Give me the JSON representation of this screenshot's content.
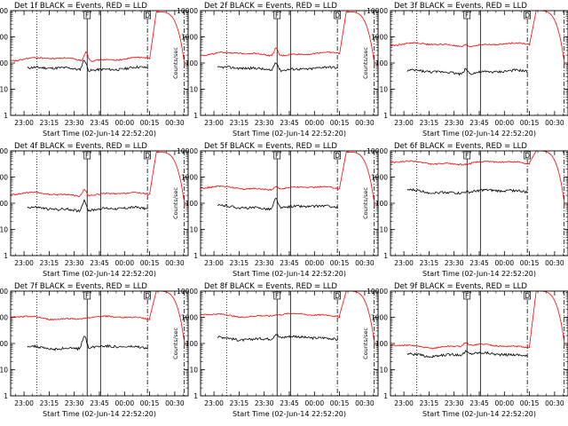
{
  "figure": {
    "background": "#ffffff",
    "colors": {
      "events": "#000000",
      "lld": "#ff0000",
      "axis": "#000000"
    }
  },
  "chart_data": [
    {
      "type": "line",
      "title": "Det 1f BLACK = Events, RED = LLD",
      "xlabel": "Start Time (02-Jun-14 22:52:20)",
      "ylabel": "Counts/sec",
      "x_ticks": [
        "23:00",
        "23:15",
        "23:30",
        "23:45",
        "00:00",
        "00:15",
        "00:30"
      ],
      "y_ticks": [
        "1",
        "10",
        "100",
        "1000",
        "10000"
      ],
      "y_scale": "log",
      "ylim": [
        1,
        10000
      ],
      "vlines": [
        {
          "style": "dotted",
          "t": 7.7
        },
        {
          "style": "solid",
          "t": 37.7
        },
        {
          "style": "solid",
          "t": 45.7
        },
        {
          "style": "dashdot",
          "t": 73.7
        },
        {
          "style": "dashdot",
          "t": 95.7
        }
      ],
      "markers": [
        {
          "label": "F",
          "t": 37.7
        },
        {
          "label": "D",
          "t": 73.7
        }
      ],
      "series": [
        {
          "color": "events",
          "level": 60,
          "t_start": 2,
          "t_end": 74,
          "bump_t": 36,
          "bump_factor": 2.5
        },
        {
          "color": "lld",
          "level": 140,
          "t_start": -8,
          "t_end": 75,
          "bump_t": 37,
          "bump_factor": 2.2,
          "rise_to": 9000
        }
      ]
    },
    {
      "type": "line",
      "title": "Det 2f BLACK = Events, RED = LLD",
      "xlabel": "Start Time (02-Jun-14 22:52:20)",
      "ylabel": "Counts/sec",
      "x_ticks": [
        "23:00",
        "23:15",
        "23:30",
        "23:45",
        "00:00",
        "00:15",
        "00:30"
      ],
      "y_ticks": [
        "1",
        "10",
        "100",
        "1000",
        "10000"
      ],
      "y_scale": "log",
      "ylim": [
        1,
        10000
      ],
      "vlines": [
        {
          "style": "dotted",
          "t": 7.7
        },
        {
          "style": "solid",
          "t": 37.7
        },
        {
          "style": "solid",
          "t": 45.7
        },
        {
          "style": "dashdot",
          "t": 73.7
        },
        {
          "style": "dashdot",
          "t": 95.7
        }
      ],
      "markers": [
        {
          "label": "F",
          "t": 37.7
        },
        {
          "label": "D",
          "t": 73.7
        }
      ],
      "series": [
        {
          "color": "events",
          "level": 60,
          "t_start": 2,
          "t_end": 74,
          "bump_t": 37,
          "bump_factor": 2.2
        },
        {
          "color": "lld",
          "level": 220,
          "t_start": -8,
          "t_end": 75,
          "bump_t": 37,
          "bump_factor": 2.0,
          "rise_to": 9000
        }
      ]
    },
    {
      "type": "line",
      "title": "Det 3f BLACK = Events, RED = LLD",
      "xlabel": "Start Time (02-Jun-14 22:52:20)",
      "ylabel": "Counts/sec",
      "x_ticks": [
        "23:00",
        "23:15",
        "23:30",
        "23:45",
        "00:00",
        "00:15",
        "00:30"
      ],
      "y_ticks": [
        "1",
        "10",
        "100",
        "1000",
        "10000"
      ],
      "y_scale": "log",
      "ylim": [
        1,
        10000
      ],
      "vlines": [
        {
          "style": "dotted",
          "t": 7.7
        },
        {
          "style": "solid",
          "t": 37.7
        },
        {
          "style": "solid",
          "t": 45.7
        },
        {
          "style": "dashdot",
          "t": 73.7
        },
        {
          "style": "dashdot",
          "t": 95.7
        }
      ],
      "markers": [
        {
          "label": "F",
          "t": 37.7
        },
        {
          "label": "D",
          "t": 73.7
        }
      ],
      "series": [
        {
          "color": "events",
          "level": 45,
          "t_start": 2,
          "t_end": 74,
          "bump_t": 37,
          "bump_factor": 1.6
        },
        {
          "color": "lld",
          "level": 500,
          "t_start": -8,
          "t_end": 75,
          "bump_t": 37,
          "bump_factor": 1.2,
          "rise_to": 10000
        }
      ]
    },
    {
      "type": "line",
      "title": "Det 4f BLACK = Events, RED = LLD",
      "xlabel": "Start Time (02-Jun-14 22:52:20)",
      "ylabel": "Counts/sec",
      "x_ticks": [
        "23:00",
        "23:15",
        "23:30",
        "23:45",
        "00:00",
        "00:15",
        "00:30"
      ],
      "y_ticks": [
        "1",
        "10",
        "100",
        "1000",
        "10000"
      ],
      "y_scale": "log",
      "ylim": [
        1,
        10000
      ],
      "vlines": [
        {
          "style": "dotted",
          "t": 7.7
        },
        {
          "style": "solid",
          "t": 37.7
        },
        {
          "style": "solid",
          "t": 45.7
        },
        {
          "style": "dashdot",
          "t": 73.7
        },
        {
          "style": "dashdot",
          "t": 95.7
        }
      ],
      "markers": [
        {
          "label": "F",
          "t": 37.7
        },
        {
          "label": "D",
          "t": 73.7
        }
      ],
      "series": [
        {
          "color": "events",
          "level": 60,
          "t_start": 2,
          "t_end": 74,
          "bump_t": 36,
          "bump_factor": 2.5
        },
        {
          "color": "lld",
          "level": 220,
          "t_start": -8,
          "t_end": 75,
          "bump_t": 36,
          "bump_factor": 1.8,
          "rise_to": 9000
        }
      ]
    },
    {
      "type": "line",
      "title": "Det 5f BLACK = Events, RED = LLD",
      "xlabel": "Start Time (02-Jun-14 22:52:20)",
      "ylabel": "Counts/sec",
      "x_ticks": [
        "23:00",
        "23:15",
        "23:30",
        "23:45",
        "00:00",
        "00:15",
        "00:30"
      ],
      "y_ticks": [
        "1",
        "10",
        "100",
        "1000",
        "10000"
      ],
      "y_scale": "log",
      "ylim": [
        1,
        10000
      ],
      "vlines": [
        {
          "style": "dotted",
          "t": 7.7
        },
        {
          "style": "solid",
          "t": 37.7
        },
        {
          "style": "solid",
          "t": 45.7
        },
        {
          "style": "dashdot",
          "t": 73.7
        },
        {
          "style": "dashdot",
          "t": 95.7
        }
      ],
      "markers": [
        {
          "label": "F",
          "t": 37.7
        },
        {
          "label": "D",
          "t": 73.7
        }
      ],
      "series": [
        {
          "color": "events",
          "level": 70,
          "t_start": 2,
          "t_end": 74,
          "bump_t": 37,
          "bump_factor": 2.5
        },
        {
          "color": "lld",
          "level": 380,
          "t_start": -8,
          "t_end": 75,
          "bump_t": 37,
          "bump_factor": 1.4,
          "rise_to": 9000
        }
      ]
    },
    {
      "type": "line",
      "title": "Det 6f BLACK = Events, RED = LLD",
      "xlabel": "Start Time (02-Jun-14 22:52:20)",
      "ylabel": "Counts/sec",
      "x_ticks": [
        "23:00",
        "23:15",
        "23:30",
        "23:45",
        "00:00",
        "00:15",
        "00:30"
      ],
      "y_ticks": [
        "1",
        "10",
        "100",
        "1000",
        "10000"
      ],
      "y_scale": "log",
      "ylim": [
        1,
        10000
      ],
      "vlines": [
        {
          "style": "dotted",
          "t": 7.7
        },
        {
          "style": "solid",
          "t": 37.7
        },
        {
          "style": "solid",
          "t": 45.7
        },
        {
          "style": "dashdot",
          "t": 73.7
        },
        {
          "style": "dashdot",
          "t": 95.7
        }
      ],
      "markers": [
        {
          "label": "F",
          "t": 37.7
        },
        {
          "label": "D",
          "t": 73.7
        }
      ],
      "series": [
        {
          "color": "events",
          "level": 280,
          "t_start": 2,
          "t_end": 74,
          "bump_t": 37,
          "bump_factor": 1.1
        },
        {
          "color": "lld",
          "level": 3500,
          "t_start": -8,
          "t_end": 75,
          "bump_t": 37,
          "bump_factor": 1.0,
          "rise_to": 10000
        }
      ]
    },
    {
      "type": "line",
      "title": "Det 7f BLACK = Events, RED = LLD",
      "xlabel": "Start Time (02-Jun-14 22:52:20)",
      "ylabel": "Counts/sec",
      "x_ticks": [
        "23:00",
        "23:15",
        "23:30",
        "23:45",
        "00:00",
        "00:15",
        "00:30"
      ],
      "y_ticks": [
        "1",
        "10",
        "100",
        "1000",
        "10000"
      ],
      "y_scale": "log",
      "ylim": [
        1,
        10000
      ],
      "vlines": [
        {
          "style": "dotted",
          "t": 7.7
        },
        {
          "style": "solid",
          "t": 37.7
        },
        {
          "style": "solid",
          "t": 45.7
        },
        {
          "style": "dashdot",
          "t": 73.7
        },
        {
          "style": "dashdot",
          "t": 95.7
        }
      ],
      "markers": [
        {
          "label": "F",
          "t": 37.7
        },
        {
          "label": "D",
          "t": 73.7
        }
      ],
      "series": [
        {
          "color": "events",
          "level": 70,
          "t_start": 2,
          "t_end": 74,
          "bump_t": 36,
          "bump_factor": 3.0
        },
        {
          "color": "lld",
          "level": 950,
          "t_start": -8,
          "t_end": 75,
          "bump_t": 37,
          "bump_factor": 1.1,
          "rise_to": 10000
        }
      ]
    },
    {
      "type": "line",
      "title": "Det 8f BLACK = Events, RED = LLD",
      "xlabel": "Start Time (02-Jun-14 22:52:20)",
      "ylabel": "Counts/sec",
      "x_ticks": [
        "23:00",
        "23:15",
        "23:30",
        "23:45",
        "00:00",
        "00:15",
        "00:30"
      ],
      "y_ticks": [
        "1",
        "10",
        "100",
        "1000",
        "10000"
      ],
      "y_scale": "log",
      "ylim": [
        1,
        10000
      ],
      "vlines": [
        {
          "style": "dotted",
          "t": 7.7
        },
        {
          "style": "solid",
          "t": 37.7
        },
        {
          "style": "solid",
          "t": 45.7
        },
        {
          "style": "dashdot",
          "t": 73.7
        },
        {
          "style": "dashdot",
          "t": 95.7
        }
      ],
      "markers": [
        {
          "label": "F",
          "t": 37.7
        },
        {
          "label": "D",
          "t": 73.7
        }
      ],
      "series": [
        {
          "color": "events",
          "level": 160,
          "t_start": 2,
          "t_end": 74,
          "bump_t": 37,
          "bump_factor": 1.5
        },
        {
          "color": "lld",
          "level": 1200,
          "t_start": -8,
          "t_end": 75,
          "bump_t": 37,
          "bump_factor": 1.1,
          "rise_to": 10000
        }
      ]
    },
    {
      "type": "line",
      "title": "Det 9f BLACK = Events, RED = LLD",
      "xlabel": "Start Time (02-Jun-14 22:52:20)",
      "ylabel": "Counts/sec",
      "x_ticks": [
        "23:00",
        "23:15",
        "23:30",
        "23:45",
        "00:00",
        "00:15",
        "00:30"
      ],
      "y_ticks": [
        "1",
        "10",
        "100",
        "1000",
        "10000"
      ],
      "y_scale": "log",
      "ylim": [
        1,
        10000
      ],
      "vlines": [
        {
          "style": "dotted",
          "t": 7.7
        },
        {
          "style": "solid",
          "t": 37.7
        },
        {
          "style": "solid",
          "t": 45.7
        },
        {
          "style": "dashdot",
          "t": 73.7
        },
        {
          "style": "dashdot",
          "t": 95.7
        }
      ],
      "markers": [
        {
          "label": "F",
          "t": 37.7
        },
        {
          "label": "D",
          "t": 73.7
        }
      ],
      "series": [
        {
          "color": "events",
          "level": 38,
          "t_start": 2,
          "t_end": 74,
          "bump_t": 37,
          "bump_factor": 1.3
        },
        {
          "color": "lld",
          "level": 80,
          "t_start": -8,
          "t_end": 75,
          "bump_t": 37,
          "bump_factor": 1.4,
          "rise_to": 10000
        }
      ]
    }
  ]
}
